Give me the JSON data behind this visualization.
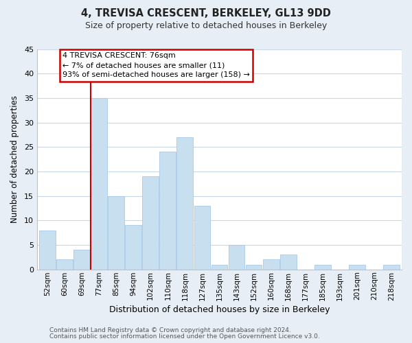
{
  "title": "4, TREVISA CRESCENT, BERKELEY, GL13 9DD",
  "subtitle": "Size of property relative to detached houses in Berkeley",
  "xlabel": "Distribution of detached houses by size in Berkeley",
  "ylabel": "Number of detached properties",
  "bar_color": "#c8dff0",
  "bar_edge_color": "#a8c8e8",
  "bin_labels": [
    "52sqm",
    "60sqm",
    "69sqm",
    "77sqm",
    "85sqm",
    "94sqm",
    "102sqm",
    "110sqm",
    "118sqm",
    "127sqm",
    "135sqm",
    "143sqm",
    "152sqm",
    "160sqm",
    "168sqm",
    "177sqm",
    "185sqm",
    "193sqm",
    "201sqm",
    "210sqm",
    "218sqm"
  ],
  "bar_heights": [
    8,
    2,
    4,
    35,
    15,
    9,
    19,
    24,
    27,
    13,
    1,
    5,
    1,
    2,
    3,
    0,
    1,
    0,
    1,
    0,
    1
  ],
  "vline_index": 3,
  "vline_color": "#cc0000",
  "annotation_title": "4 TREVISA CRESCENT: 76sqm",
  "annotation_line1": "← 7% of detached houses are smaller (11)",
  "annotation_line2": "93% of semi-detached houses are larger (158) →",
  "ylim": [
    0,
    45
  ],
  "yticks": [
    0,
    5,
    10,
    15,
    20,
    25,
    30,
    35,
    40,
    45
  ],
  "footer1": "Contains HM Land Registry data © Crown copyright and database right 2024.",
  "footer2": "Contains public sector information licensed under the Open Government Licence v3.0.",
  "background_color": "#e8eef5",
  "plot_bg_color": "#ffffff",
  "grid_color": "#c8d8e8"
}
